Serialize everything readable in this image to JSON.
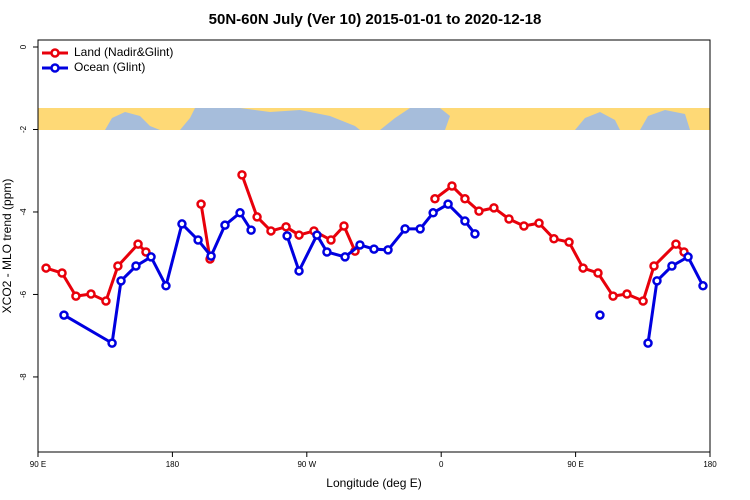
{
  "chart_data": {
    "type": "line",
    "title": "50N-60N July (Ver 10)   2015-01-01 to 2020-12-18",
    "x_label": "Longitude (deg E)",
    "y_label": "XCO2 - MLO trend (ppm)",
    "xlim": [
      90,
      540
    ],
    "ylim": [
      -9.82,
      0.17
    ],
    "xticks": [
      {
        "value": 90,
        "label": "90 E"
      },
      {
        "value": 180,
        "label": "180"
      },
      {
        "value": 270,
        "label": "90 W"
      },
      {
        "value": 360,
        "label": "0"
      },
      {
        "value": 450,
        "label": "90 E"
      },
      {
        "value": 540,
        "label": "180"
      }
    ],
    "yticks": [
      0,
      -2,
      -4,
      -6,
      -8
    ],
    "legend": "top-left",
    "series": [
      {
        "name": "Land (Nadir&Glint)",
        "color": "#e8000b",
        "x": [
          95.4,
          106.1,
          115.4,
          125.5,
          135.5,
          143.5,
          157.0,
          162.3,
          null,
          199.2,
          205.2,
          null,
          226.6,
          236.7,
          246.0,
          256.1,
          264.8,
          274.8,
          286.2,
          294.9,
          302.3,
          null,
          355.8,
          367.2,
          375.9,
          385.3,
          395.3,
          405.4,
          415.4,
          425.5,
          435.5,
          445.6,
          455.0,
          465.0,
          475.1,
          484.4,
          495.2,
          502.5,
          517.2,
          522.6
        ],
        "values": [
          -5.36,
          -5.48,
          -6.04,
          -5.99,
          -6.16,
          -5.31,
          -4.78,
          -4.97,
          null,
          -3.81,
          -5.14,
          null,
          -3.1,
          -4.12,
          -4.46,
          -4.36,
          -4.56,
          -4.46,
          -4.68,
          -4.34,
          -4.95,
          null,
          -3.68,
          -3.37,
          -3.68,
          -3.98,
          -3.9,
          -4.17,
          -4.34,
          -4.27,
          -4.65,
          -4.73,
          -5.36,
          -5.48,
          -6.04,
          -5.99,
          -6.16,
          -5.31,
          -4.78,
          -4.97
        ]
      },
      {
        "name": "Ocean (Glint)",
        "color": "#0000e0",
        "x": [
          107.4,
          139.6,
          145.6,
          155.6,
          165.7,
          175.7,
          186.4,
          197.2,
          205.9,
          215.2,
          225.3,
          232.7,
          null,
          256.8,
          264.8,
          276.8,
          283.5,
          295.6,
          305.6,
          315.0,
          324.4,
          335.8,
          345.9,
          354.6,
          364.6,
          375.9,
          382.6,
          null,
          466.3,
          null,
          498.5,
          504.5,
          514.5,
          525.3,
          535.3
        ],
        "values": [
          -6.5,
          -7.18,
          -5.67,
          -5.31,
          -5.09,
          -5.79,
          -4.29,
          -4.68,
          -5.07,
          -4.32,
          -4.02,
          -4.44,
          null,
          -4.58,
          -5.43,
          -4.56,
          -4.97,
          -5.09,
          -4.8,
          -4.9,
          -4.92,
          -4.41,
          -4.41,
          -4.02,
          -3.81,
          -4.22,
          -4.53,
          null,
          -6.5,
          null,
          -7.18,
          -5.67,
          -5.31,
          -5.09,
          -5.79
        ]
      }
    ]
  }
}
